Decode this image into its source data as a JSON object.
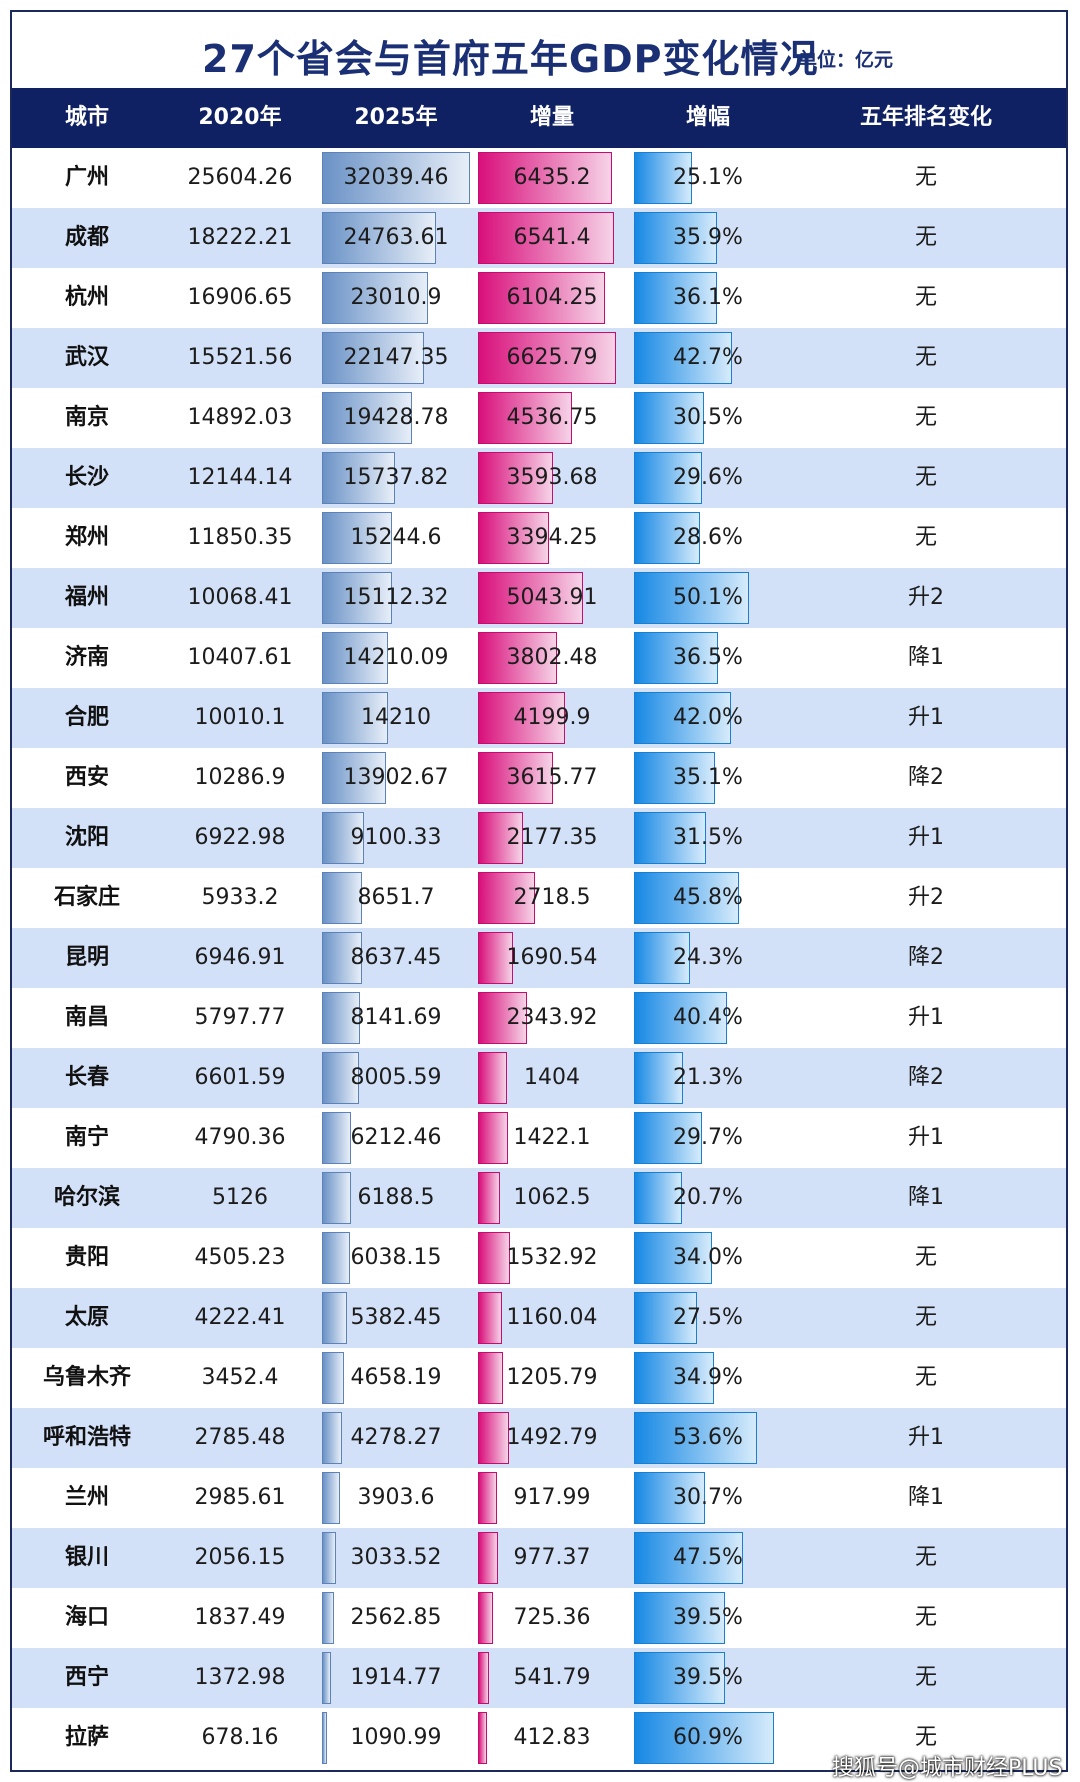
{
  "title": "27个省会与首府五年GDP变化情况",
  "unit": "单位：亿元",
  "watermark": "搜狐号@城市财经PLUS",
  "colors": {
    "header_bg": "#0f2063",
    "title": "#1a2f74",
    "row_alt": "#d3e1f8",
    "bar_2025": "#6a92c6",
    "bar_increase": "#d90f7b",
    "bar_growth": "#1688e4"
  },
  "chart_data": {
    "type": "table",
    "columns": [
      "城市",
      "2020年",
      "2025年",
      "增量",
      "增幅",
      "五年排名变化"
    ],
    "rows": [
      {
        "city": "广州",
        "gdp2020": "25604.26",
        "gdp2025": "32039.46",
        "increase": "6435.2",
        "growth": "25.1%",
        "rank_change": "无"
      },
      {
        "city": "成都",
        "gdp2020": "18222.21",
        "gdp2025": "24763.61",
        "increase": "6541.4",
        "growth": "35.9%",
        "rank_change": "无"
      },
      {
        "city": "杭州",
        "gdp2020": "16906.65",
        "gdp2025": "23010.9",
        "increase": "6104.25",
        "growth": "36.1%",
        "rank_change": "无"
      },
      {
        "city": "武汉",
        "gdp2020": "15521.56",
        "gdp2025": "22147.35",
        "increase": "6625.79",
        "growth": "42.7%",
        "rank_change": "无"
      },
      {
        "city": "南京",
        "gdp2020": "14892.03",
        "gdp2025": "19428.78",
        "increase": "4536.75",
        "growth": "30.5%",
        "rank_change": "无"
      },
      {
        "city": "长沙",
        "gdp2020": "12144.14",
        "gdp2025": "15737.82",
        "increase": "3593.68",
        "growth": "29.6%",
        "rank_change": "无"
      },
      {
        "city": "郑州",
        "gdp2020": "11850.35",
        "gdp2025": "15244.6",
        "increase": "3394.25",
        "growth": "28.6%",
        "rank_change": "无"
      },
      {
        "city": "福州",
        "gdp2020": "10068.41",
        "gdp2025": "15112.32",
        "increase": "5043.91",
        "growth": "50.1%",
        "rank_change": "升2"
      },
      {
        "city": "济南",
        "gdp2020": "10407.61",
        "gdp2025": "14210.09",
        "increase": "3802.48",
        "growth": "36.5%",
        "rank_change": "降1"
      },
      {
        "city": "合肥",
        "gdp2020": "10010.1",
        "gdp2025": "14210",
        "increase": "4199.9",
        "growth": "42.0%",
        "rank_change": "升1"
      },
      {
        "city": "西安",
        "gdp2020": "10286.9",
        "gdp2025": "13902.67",
        "increase": "3615.77",
        "growth": "35.1%",
        "rank_change": "降2"
      },
      {
        "city": "沈阳",
        "gdp2020": "6922.98",
        "gdp2025": "9100.33",
        "increase": "2177.35",
        "growth": "31.5%",
        "rank_change": "升1"
      },
      {
        "city": "石家庄",
        "gdp2020": "5933.2",
        "gdp2025": "8651.7",
        "increase": "2718.5",
        "growth": "45.8%",
        "rank_change": "升2"
      },
      {
        "city": "昆明",
        "gdp2020": "6946.91",
        "gdp2025": "8637.45",
        "increase": "1690.54",
        "growth": "24.3%",
        "rank_change": "降2"
      },
      {
        "city": "南昌",
        "gdp2020": "5797.77",
        "gdp2025": "8141.69",
        "increase": "2343.92",
        "growth": "40.4%",
        "rank_change": "升1"
      },
      {
        "city": "长春",
        "gdp2020": "6601.59",
        "gdp2025": "8005.59",
        "increase": "1404",
        "growth": "21.3%",
        "rank_change": "降2"
      },
      {
        "city": "南宁",
        "gdp2020": "4790.36",
        "gdp2025": "6212.46",
        "increase": "1422.1",
        "growth": "29.7%",
        "rank_change": "升1"
      },
      {
        "city": "哈尔滨",
        "gdp2020": "5126",
        "gdp2025": "6188.5",
        "increase": "1062.5",
        "growth": "20.7%",
        "rank_change": "降1"
      },
      {
        "city": "贵阳",
        "gdp2020": "4505.23",
        "gdp2025": "6038.15",
        "increase": "1532.92",
        "growth": "34.0%",
        "rank_change": "无"
      },
      {
        "city": "太原",
        "gdp2020": "4222.41",
        "gdp2025": "5382.45",
        "increase": "1160.04",
        "growth": "27.5%",
        "rank_change": "无"
      },
      {
        "city": "乌鲁木齐",
        "gdp2020": "3452.4",
        "gdp2025": "4658.19",
        "increase": "1205.79",
        "growth": "34.9%",
        "rank_change": "无"
      },
      {
        "city": "呼和浩特",
        "gdp2020": "2785.48",
        "gdp2025": "4278.27",
        "increase": "1492.79",
        "growth": "53.6%",
        "rank_change": "升1"
      },
      {
        "city": "兰州",
        "gdp2020": "2985.61",
        "gdp2025": "3903.6",
        "increase": "917.99",
        "growth": "30.7%",
        "rank_change": "降1"
      },
      {
        "city": "银川",
        "gdp2020": "2056.15",
        "gdp2025": "3033.52",
        "increase": "977.37",
        "growth": "47.5%",
        "rank_change": "无"
      },
      {
        "city": "海口",
        "gdp2020": "1837.49",
        "gdp2025": "2562.85",
        "increase": "725.36",
        "growth": "39.5%",
        "rank_change": "无"
      },
      {
        "city": "西宁",
        "gdp2020": "1372.98",
        "gdp2025": "1914.77",
        "increase": "541.79",
        "growth": "39.5%",
        "rank_change": "无"
      },
      {
        "city": "拉萨",
        "gdp2020": "678.16",
        "gdp2025": "1090.99",
        "increase": "412.83",
        "growth": "60.9%",
        "rank_change": "无"
      }
    ]
  }
}
